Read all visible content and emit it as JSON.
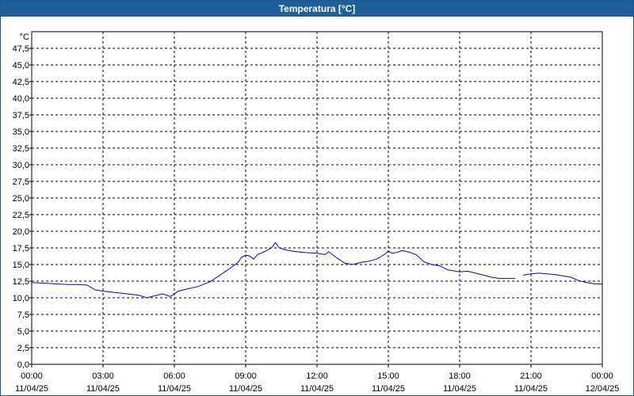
{
  "window": {
    "title": "Temperatura [°C]"
  },
  "chart_data": {
    "type": "line",
    "title": "Temperatura [°C]",
    "ylabel": "°C",
    "xlabel": "",
    "ylim": [
      0,
      47.5
    ],
    "yticks": [
      "0,0",
      "2,5",
      "5,0",
      "7,5",
      "10,0",
      "12,5",
      "15,0",
      "17,5",
      "20,0",
      "22,5",
      "25,0",
      "27,5",
      "30,0",
      "32,5",
      "35,0",
      "37,5",
      "40,0",
      "42,5",
      "45,0",
      "47,5"
    ],
    "xticks": [
      {
        "time": "00:00",
        "date": "11/04/25"
      },
      {
        "time": "03:00",
        "date": "11/04/25"
      },
      {
        "time": "06:00",
        "date": "11/04/25"
      },
      {
        "time": "09:00",
        "date": "11/04/25"
      },
      {
        "time": "12:00",
        "date": "11/04/25"
      },
      {
        "time": "15:00",
        "date": "11/04/25"
      },
      {
        "time": "18:00",
        "date": "11/04/25"
      },
      {
        "time": "21:00",
        "date": "11/04/25"
      },
      {
        "time": "00:00",
        "date": "12/04/25"
      }
    ],
    "grid": true,
    "series": [
      {
        "color": "#0000cc",
        "segments": [
          [
            [
              "00:00",
              12.3
            ],
            [
              "00:30",
              12.2
            ],
            [
              "01:00",
              12.1
            ],
            [
              "01:30",
              12.0
            ],
            [
              "02:00",
              12.0
            ],
            [
              "02:20",
              11.9
            ],
            [
              "02:40",
              11.2
            ],
            [
              "03:00",
              11.0
            ],
            [
              "03:30",
              10.8
            ],
            [
              "04:00",
              10.6
            ],
            [
              "04:30",
              10.4
            ],
            [
              "04:50",
              10.0
            ],
            [
              "05:10",
              10.3
            ],
            [
              "05:30",
              10.6
            ],
            [
              "05:50",
              10.2
            ],
            [
              "06:10",
              11.0
            ],
            [
              "06:30",
              11.3
            ],
            [
              "07:00",
              11.7
            ],
            [
              "07:30",
              12.4
            ],
            [
              "08:00",
              13.6
            ],
            [
              "08:20",
              14.4
            ],
            [
              "08:40",
              15.3
            ],
            [
              "08:50",
              16.1
            ],
            [
              "09:00",
              16.4
            ],
            [
              "09:10",
              16.3
            ],
            [
              "09:20",
              15.8
            ],
            [
              "09:30",
              16.5
            ],
            [
              "09:50",
              17.0
            ],
            [
              "10:05",
              17.5
            ],
            [
              "10:15",
              18.3
            ],
            [
              "10:25",
              17.5
            ],
            [
              "10:40",
              17.2
            ],
            [
              "11:00",
              17.0
            ],
            [
              "11:30",
              16.8
            ],
            [
              "12:00",
              16.7
            ],
            [
              "12:20",
              16.5
            ],
            [
              "12:30",
              16.9
            ],
            [
              "12:50",
              16.0
            ],
            [
              "13:10",
              15.2
            ],
            [
              "13:30",
              15.0
            ],
            [
              "13:50",
              15.3
            ],
            [
              "14:10",
              15.5
            ],
            [
              "14:30",
              15.8
            ],
            [
              "14:50",
              16.5
            ],
            [
              "15:00",
              17.0
            ],
            [
              "15:10",
              16.7
            ],
            [
              "15:20",
              16.8
            ],
            [
              "15:35",
              17.1
            ],
            [
              "15:50",
              16.9
            ],
            [
              "16:10",
              16.5
            ],
            [
              "16:30",
              15.4
            ],
            [
              "16:50",
              15.0
            ],
            [
              "17:10",
              14.8
            ],
            [
              "17:30",
              14.2
            ],
            [
              "18:00",
              13.9
            ],
            [
              "18:20",
              14.0
            ],
            [
              "18:40",
              13.7
            ],
            [
              "19:00",
              13.4
            ],
            [
              "19:20",
              13.1
            ],
            [
              "19:40",
              12.9
            ],
            [
              "20:00",
              12.9
            ],
            [
              "20:20",
              12.9
            ]
          ],
          [
            [
              "20:40",
              13.4
            ],
            [
              "21:00",
              13.6
            ],
            [
              "21:20",
              13.7
            ],
            [
              "21:40",
              13.6
            ],
            [
              "22:00",
              13.5
            ],
            [
              "22:20",
              13.3
            ],
            [
              "22:40",
              13.1
            ],
            [
              "23:00",
              12.6
            ],
            [
              "23:20",
              12.3
            ],
            [
              "23:40",
              12.1
            ],
            [
              "24:00",
              12.1
            ]
          ]
        ]
      }
    ]
  }
}
